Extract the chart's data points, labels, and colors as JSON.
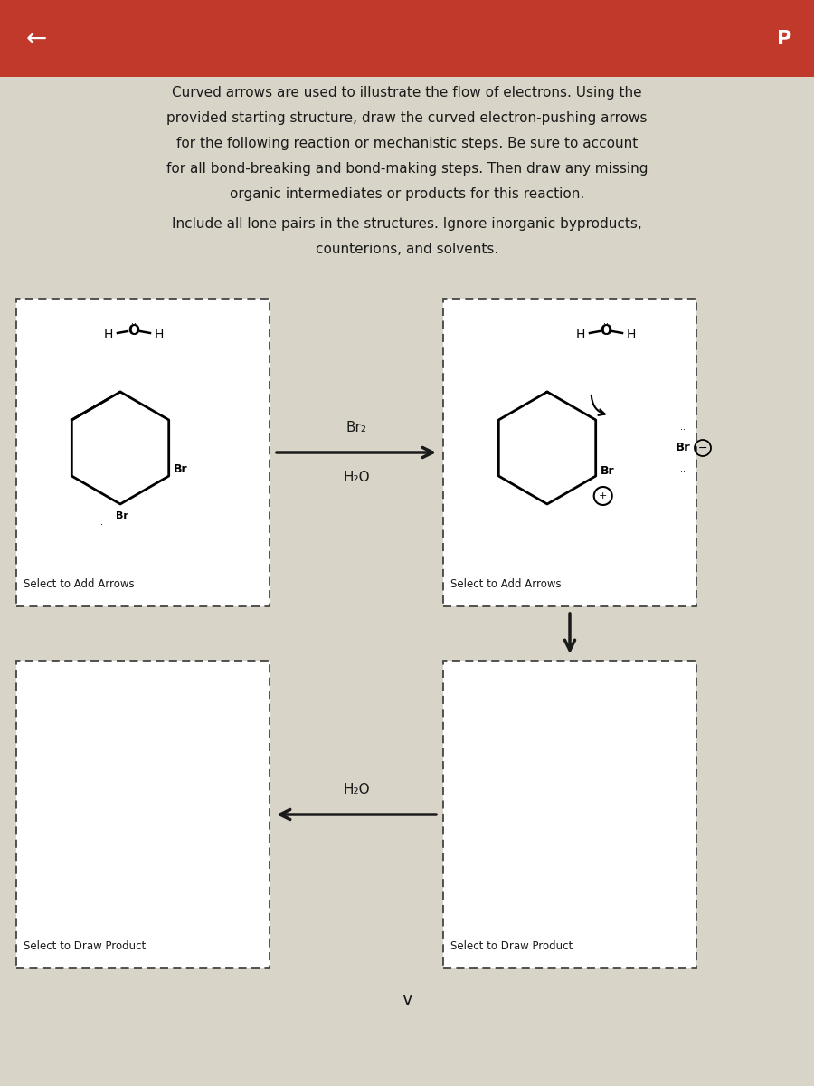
{
  "background_color": "#d8d4c8",
  "header_bg": "#c0392b",
  "title_lines": [
    "Curved arrows are used to illustrate the flow of electrons. Using the",
    "provided starting structure, draw the curved electron-pushing arrows",
    "for the following reaction or mechanistic steps. Be sure to account",
    "for all bond-breaking and bond-making steps. Then draw any missing",
    "organic intermediates or products for this reaction."
  ],
  "subtitle_lines": [
    "Include all lone pairs in the structures. Ignore inorganic byproducts,",
    "counterions, and solvents."
  ],
  "box1_label": "Select to Add Arrows",
  "box2_label": "Select to Add Arrows",
  "box3_label": "Select to Draw Product",
  "box4_label": "Select to Draw Product",
  "arrow1_label_top": "Br₂",
  "arrow1_label_bottom": "H₂O",
  "arrow2_label": "H₂O",
  "text_color": "#1a1a1a",
  "box_color": "#333333",
  "arrow_color": "#1a1a1a"
}
